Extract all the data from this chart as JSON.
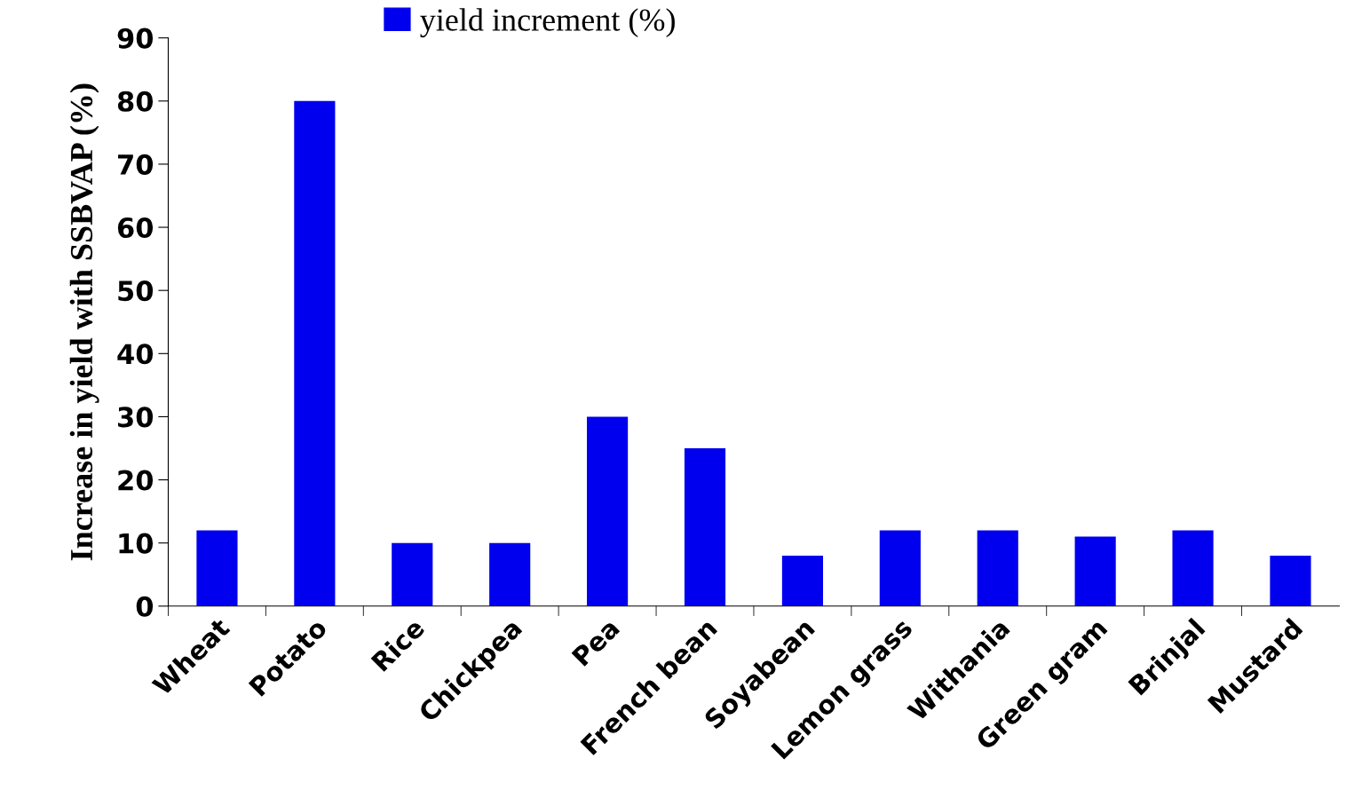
{
  "chart_data": {
    "type": "bar",
    "ylabel": "Increase in yield with SSBVAP (%)",
    "categories": [
      "Wheat",
      "Potato",
      "Rice",
      "Chickpea",
      "Pea",
      "French bean",
      "Soyabean",
      "Lemon grass",
      "Withania",
      "Green gram",
      "Brinjal",
      "Mustard"
    ],
    "series": [
      {
        "name": "yield increment (%)",
        "color": "#0000ee",
        "values": [
          12,
          80,
          10,
          10,
          30,
          25,
          8,
          12,
          12,
          11,
          12,
          8
        ]
      }
    ],
    "ylim": [
      0,
      90
    ],
    "yticks": [
      0,
      10,
      20,
      30,
      40,
      50,
      60,
      70,
      80,
      90
    ],
    "grid": false,
    "legend": "top"
  }
}
